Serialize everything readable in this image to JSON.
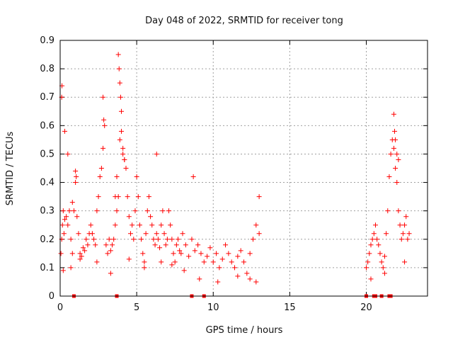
{
  "chart_data": {
    "type": "scatter",
    "title": "Day 048 of 2022, SRMTID for receiver tong",
    "xlabel": "GPS time / hours",
    "ylabel": "SRMTID / TECUs",
    "xlim": [
      0,
      24
    ],
    "ylim": [
      0,
      0.9
    ],
    "x_ticks": [
      0,
      5,
      10,
      15,
      20
    ],
    "x_tick_labels": [
      "0",
      "5",
      "10",
      "15",
      "20"
    ],
    "y_ticks": [
      0,
      0.1,
      0.2,
      0.3,
      0.4,
      0.5,
      0.6,
      0.7,
      0.8,
      0.9
    ],
    "y_tick_labels": [
      "0",
      "0.1",
      "0.2",
      "0.3",
      "0.4",
      "0.5",
      "0.6",
      "0.7",
      "0.8",
      "0.9"
    ],
    "grid": true,
    "marker": "plus",
    "marker_color": "#ff0000",
    "series": [
      {
        "name": "SRMTID",
        "x": [
          0.05,
          0.1,
          0.15,
          0.2,
          0.25,
          0.3,
          0.4,
          0.5,
          0.6,
          0.7,
          0.8,
          0.9,
          1.0,
          1.1,
          1.2,
          1.3,
          1.4,
          1.5,
          1.6,
          1.7,
          1.8,
          1.9,
          2.0,
          2.1,
          2.2,
          2.3,
          2.4,
          2.5,
          2.6,
          2.7,
          2.8,
          2.9,
          3.0,
          3.1,
          3.2,
          3.3,
          3.4,
          3.5,
          3.6,
          3.7,
          3.8,
          3.9,
          4.0,
          4.1,
          4.2,
          4.3,
          4.4,
          4.5,
          4.6,
          4.7,
          4.8,
          4.9,
          5.0,
          5.1,
          5.2,
          5.3,
          5.4,
          5.5,
          5.6,
          5.7,
          5.8,
          5.9,
          6.0,
          6.1,
          6.2,
          6.3,
          6.4,
          6.5,
          6.6,
          6.7,
          6.8,
          6.9,
          7.0,
          7.1,
          7.2,
          7.3,
          7.4,
          7.5,
          7.6,
          7.7,
          7.8,
          7.9,
          8.0,
          8.2,
          8.4,
          8.6,
          8.8,
          9.0,
          9.2,
          9.4,
          9.6,
          9.8,
          10.0,
          10.2,
          10.4,
          10.6,
          10.8,
          11.0,
          11.2,
          11.4,
          11.6,
          11.8,
          12.0,
          12.2,
          12.4,
          12.6,
          12.8,
          13.0,
          20.0,
          20.1,
          20.2,
          20.3,
          20.4,
          20.5,
          20.6,
          20.7,
          20.8,
          20.9,
          21.0,
          21.1,
          21.2,
          21.3,
          21.4,
          21.5,
          21.6,
          21.7,
          21.8,
          21.9,
          22.0,
          22.1,
          22.2,
          22.3,
          22.4,
          22.5,
          22.6,
          22.7,
          22.8,
          0.1,
          0.12,
          0.3,
          0.5,
          0.8,
          1.0,
          1.05,
          2.8,
          2.85,
          3.6,
          3.7,
          3.8,
          3.85,
          3.9,
          3.95,
          4.0,
          4.1,
          4.2,
          6.3,
          8.7,
          13.0,
          21.8,
          21.85,
          21.9,
          22.0,
          22.1,
          0.2,
          0.7,
          1.3,
          2.4,
          3.3,
          4.5,
          5.5,
          6.6,
          7.3,
          8.1,
          9.1,
          10.3,
          11.6,
          12.4,
          12.8,
          20.3,
          21.2,
          22.5
        ],
        "y": [
          0.15,
          0.2,
          0.25,
          0.3,
          0.22,
          0.27,
          0.28,
          0.25,
          0.3,
          0.2,
          0.15,
          0.3,
          0.4,
          0.28,
          0.22,
          0.15,
          0.14,
          0.17,
          0.16,
          0.2,
          0.18,
          0.22,
          0.25,
          0.22,
          0.2,
          0.18,
          0.3,
          0.35,
          0.42,
          0.45,
          0.52,
          0.6,
          0.18,
          0.15,
          0.2,
          0.16,
          0.18,
          0.2,
          0.25,
          0.3,
          0.35,
          0.55,
          0.65,
          0.52,
          0.48,
          0.45,
          0.35,
          0.28,
          0.22,
          0.25,
          0.2,
          0.3,
          0.42,
          0.35,
          0.25,
          0.2,
          0.15,
          0.12,
          0.22,
          0.3,
          0.35,
          0.28,
          0.25,
          0.2,
          0.18,
          0.22,
          0.2,
          0.17,
          0.25,
          0.3,
          0.22,
          0.18,
          0.2,
          0.3,
          0.25,
          0.2,
          0.15,
          0.12,
          0.18,
          0.2,
          0.16,
          0.15,
          0.22,
          0.18,
          0.14,
          0.2,
          0.16,
          0.18,
          0.15,
          0.12,
          0.14,
          0.17,
          0.12,
          0.15,
          0.1,
          0.13,
          0.18,
          0.15,
          0.12,
          0.1,
          0.14,
          0.16,
          0.12,
          0.08,
          0.15,
          0.2,
          0.25,
          0.22,
          0.1,
          0.12,
          0.15,
          0.18,
          0.2,
          0.22,
          0.25,
          0.2,
          0.18,
          0.15,
          0.12,
          0.1,
          0.14,
          0.22,
          0.3,
          0.42,
          0.5,
          0.55,
          0.52,
          0.45,
          0.4,
          0.3,
          0.25,
          0.2,
          0.22,
          0.25,
          0.28,
          0.2,
          0.22,
          0.7,
          0.74,
          0.58,
          0.5,
          0.33,
          0.44,
          0.42,
          0.7,
          0.62,
          0.35,
          0.42,
          0.85,
          0.8,
          0.75,
          0.7,
          0.58,
          0.5,
          0.48,
          0.5,
          0.42,
          0.35,
          0.64,
          0.58,
          0.55,
          0.5,
          0.48,
          0.09,
          0.1,
          0.13,
          0.12,
          0.08,
          0.13,
          0.1,
          0.12,
          0.11,
          0.09,
          0.06,
          0.05,
          0.07,
          0.06,
          0.05,
          0.06,
          0.08,
          0.12
        ],
        "zero_x": [
          0.9,
          3.7,
          8.6,
          9.4,
          20.0,
          20.5,
          20.6,
          21.0,
          21.5,
          21.6
        ]
      }
    ]
  }
}
